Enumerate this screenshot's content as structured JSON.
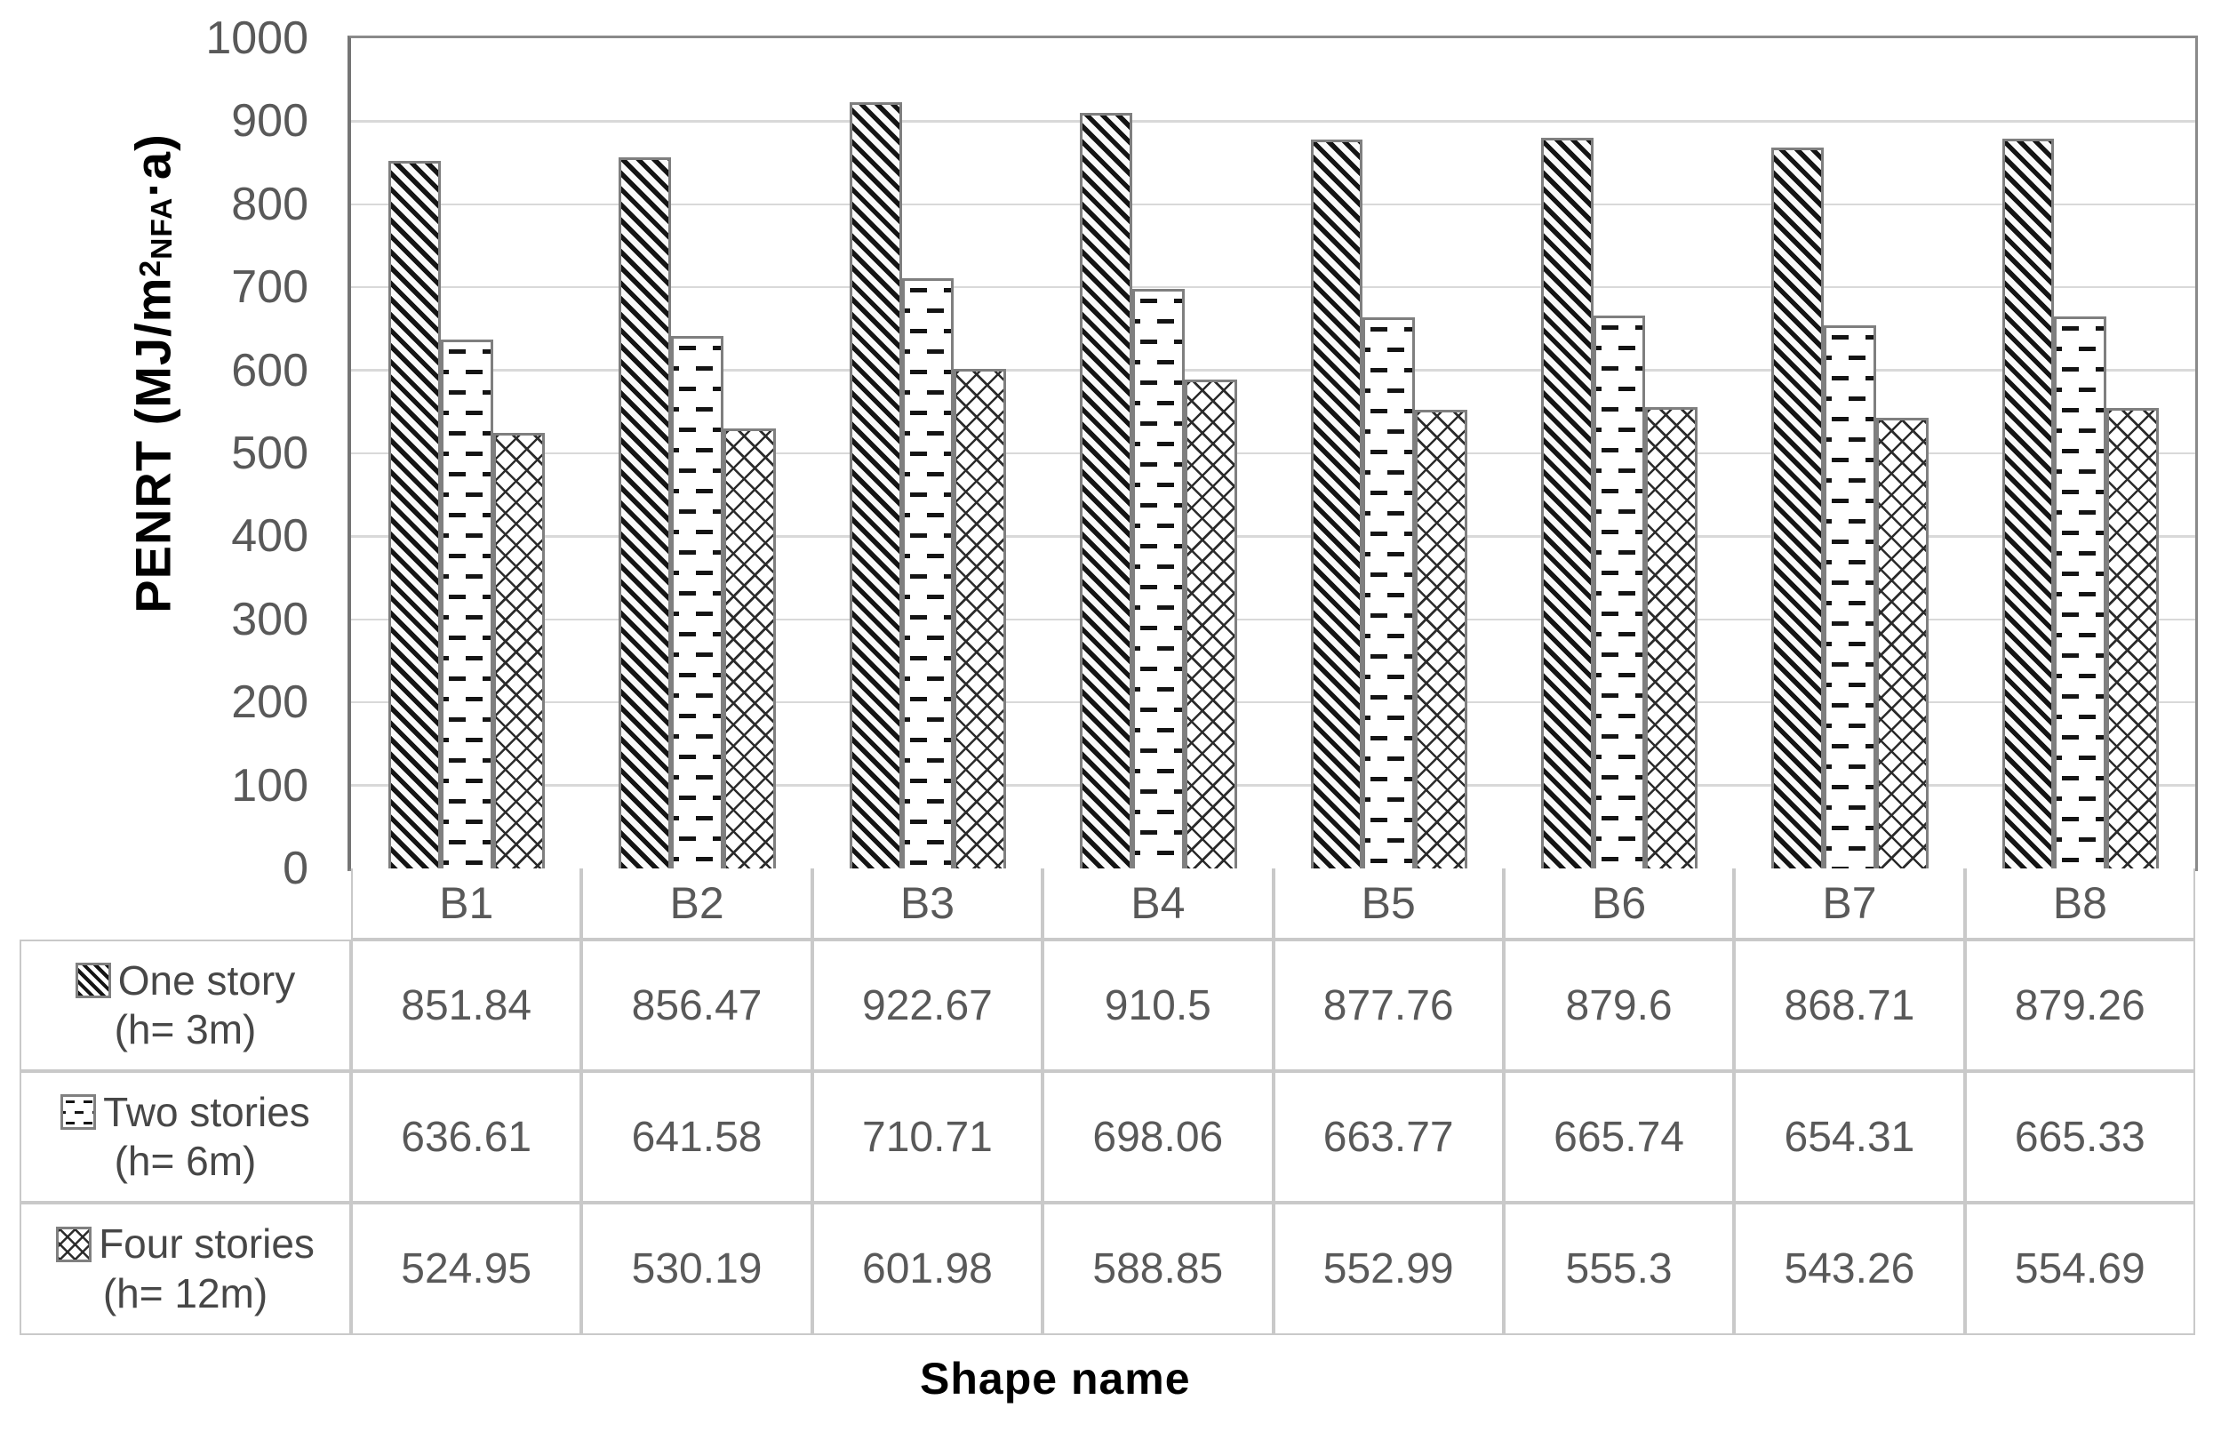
{
  "y_axis": {
    "title_parts": {
      "prefix": "PENRT (MJ/m",
      "sup": "2",
      "sub": "NFA",
      "suffix": "·a)"
    }
  },
  "x_axis_title": "Shape name",
  "chart_data": {
    "type": "bar",
    "title": "",
    "xlabel": "Shape name",
    "ylabel": "PENRT (MJ/m²NFA·a)",
    "ylim": [
      0,
      1000
    ],
    "ytick_step": 100,
    "grid": true,
    "legend_position": "data-table-left",
    "categories": [
      "B1",
      "B2",
      "B3",
      "B4",
      "B5",
      "B6",
      "B7",
      "B8"
    ],
    "series": [
      {
        "name": "One story (h= 3m)",
        "pattern": "diagonal-stripes",
        "values": [
          851.84,
          856.47,
          922.67,
          910.5,
          877.76,
          879.6,
          868.71,
          879.26
        ]
      },
      {
        "name": "Two stories (h= 6m)",
        "pattern": "staggered-horizontal-dashes",
        "values": [
          636.61,
          641.58,
          710.71,
          698.06,
          663.77,
          665.74,
          654.31,
          665.33
        ]
      },
      {
        "name": "Four stories (h= 12m)",
        "pattern": "diamond-crosshatch",
        "values": [
          524.95,
          530.19,
          601.98,
          588.85,
          552.99,
          555.3,
          543.26,
          554.69
        ]
      }
    ]
  },
  "table": {
    "row_headers": [
      [
        "One story",
        "(h= 3m)"
      ],
      [
        "Two stories",
        "(h= 6m)"
      ],
      [
        "Four stories",
        "(h= 12m)"
      ]
    ]
  },
  "colors": {
    "text_gray": "#595959",
    "legend_text": "#474747",
    "plot_border": "#8a8a8a",
    "gridline": "#d9d9d9",
    "table_border": "#c9c9c9",
    "bar_outline": "#7f7f7f",
    "pattern_ink": "#141414"
  }
}
